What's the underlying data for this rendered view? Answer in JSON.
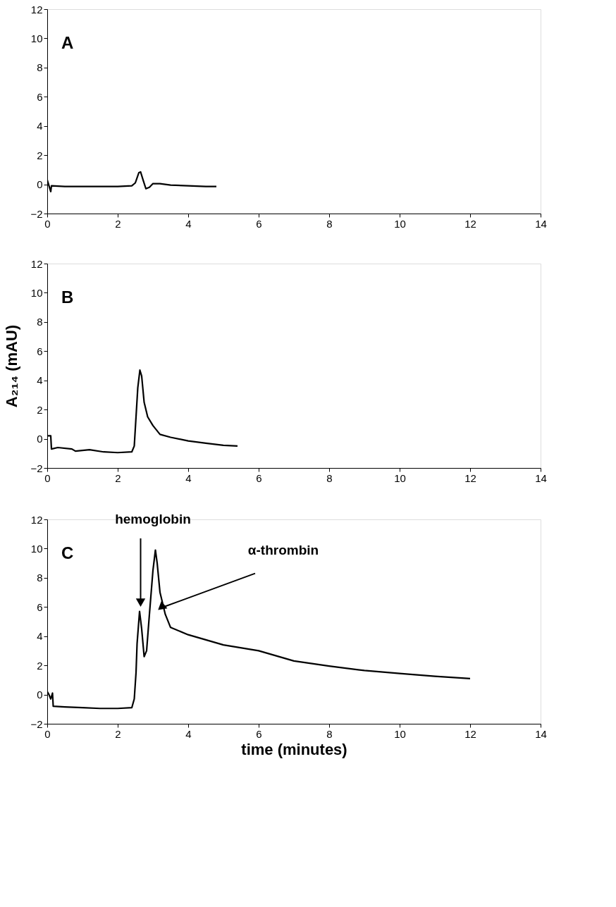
{
  "chart_data": [
    {
      "type": "line",
      "xlim": [
        0,
        14
      ],
      "xticks": [
        0,
        2,
        4,
        6,
        8,
        10,
        12,
        14
      ],
      "ylim": [
        -2,
        12
      ],
      "yticks": [
        -2,
        0,
        2,
        4,
        6,
        8,
        10,
        12
      ],
      "grid": false,
      "annotations": [
        "A"
      ],
      "series": [
        {
          "color": "#000000",
          "x": [
            0,
            0.05,
            0.1,
            0.12,
            0.5,
            1,
            1.5,
            2,
            2.4,
            2.5,
            2.6,
            2.65,
            2.72,
            2.8,
            2.9,
            3.0,
            3.2,
            3.5,
            4,
            4.5,
            4.8
          ],
          "values": [
            0.3,
            -0.1,
            -0.5,
            -0.1,
            -0.15,
            -0.15,
            -0.15,
            -0.15,
            -0.1,
            0.1,
            0.8,
            0.85,
            0.3,
            -0.3,
            -0.2,
            0.05,
            0.05,
            -0.05,
            -0.1,
            -0.15,
            -0.15
          ]
        }
      ]
    },
    {
      "type": "line",
      "xlim": [
        0,
        14
      ],
      "xticks": [
        0,
        2,
        4,
        6,
        8,
        10,
        12,
        14
      ],
      "ylim": [
        -2,
        12
      ],
      "yticks": [
        -2,
        0,
        2,
        4,
        6,
        8,
        10,
        12
      ],
      "grid": false,
      "ylabel": "A₂₁₄ (mAU)",
      "annotations": [
        "B"
      ],
      "series": [
        {
          "color": "#000000",
          "x": [
            0,
            0.1,
            0.12,
            0.3,
            0.7,
            0.8,
            1.2,
            1.6,
            2,
            2.4,
            2.47,
            2.52,
            2.57,
            2.63,
            2.68,
            2.75,
            2.85,
            3,
            3.2,
            3.5,
            4,
            4.5,
            5,
            5.4
          ],
          "values": [
            0.2,
            0.2,
            -0.7,
            -0.6,
            -0.7,
            -0.85,
            -0.75,
            -0.9,
            -0.95,
            -0.9,
            -0.5,
            1.5,
            3.5,
            4.7,
            4.3,
            2.5,
            1.5,
            0.9,
            0.3,
            0.1,
            -0.15,
            -0.3,
            -0.45,
            -0.5
          ]
        }
      ]
    },
    {
      "type": "line",
      "xlim": [
        0,
        14
      ],
      "xticks": [
        0,
        2,
        4,
        6,
        8,
        10,
        12,
        14
      ],
      "ylim": [
        -2,
        12
      ],
      "yticks": [
        -2,
        0,
        2,
        4,
        6,
        8,
        10,
        12
      ],
      "grid": false,
      "xlabel": "time (minutes)",
      "annotations": [
        "C",
        {
          "text": "hemoglobin",
          "x": 2.65,
          "y": 6.3
        },
        {
          "text": "α-thrombin",
          "x": 3.3,
          "y": 6.0
        }
      ],
      "series": [
        {
          "color": "#000000",
          "x": [
            0,
            0.05,
            0.1,
            0.15,
            0.17,
            0.5,
            1,
            1.5,
            2,
            2.4,
            2.47,
            2.52,
            2.55,
            2.62,
            2.68,
            2.75,
            2.82,
            2.9,
            3,
            3.07,
            3.12,
            3.2,
            3.35,
            3.5,
            4,
            5,
            6,
            7,
            8,
            9,
            10,
            11,
            12
          ],
          "values": [
            0.2,
            0.0,
            -0.3,
            0.1,
            -0.8,
            -0.85,
            -0.9,
            -0.95,
            -0.95,
            -0.9,
            -0.3,
            1.5,
            3.5,
            5.7,
            4.5,
            2.6,
            3.0,
            5.5,
            8.5,
            9.9,
            9.0,
            7,
            5.5,
            4.6,
            4.1,
            3.4,
            3.0,
            2.3,
            1.95,
            1.65,
            1.45,
            1.25,
            1.1
          ]
        }
      ]
    }
  ]
}
